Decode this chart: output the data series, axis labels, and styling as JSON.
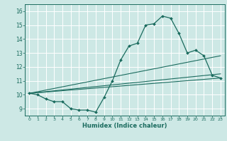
{
  "xlabel": "Humidex (Indice chaleur)",
  "ylabel": "",
  "background_color": "#cde8e5",
  "line_color": "#1a6b5e",
  "grid_color": "#ffffff",
  "xlim": [
    -0.5,
    23.5
  ],
  "ylim": [
    8.5,
    16.5
  ],
  "xticks": [
    0,
    1,
    2,
    3,
    4,
    5,
    6,
    7,
    8,
    9,
    10,
    11,
    12,
    13,
    14,
    15,
    16,
    17,
    18,
    19,
    20,
    21,
    22,
    23
  ],
  "yticks": [
    9,
    10,
    11,
    12,
    13,
    14,
    15,
    16
  ],
  "curve1_x": [
    0,
    1,
    2,
    3,
    4,
    5,
    6,
    7,
    8,
    9,
    10,
    11,
    12,
    13,
    14,
    15,
    16,
    17,
    18,
    19,
    20,
    21,
    22,
    23
  ],
  "curve1_y": [
    10.1,
    10.0,
    9.7,
    9.5,
    9.5,
    9.0,
    8.9,
    8.9,
    8.75,
    9.8,
    11.0,
    12.5,
    13.5,
    13.7,
    15.0,
    15.1,
    15.65,
    15.5,
    14.4,
    13.0,
    13.2,
    12.8,
    11.4,
    11.2
  ],
  "curve2_x": [
    0,
    23
  ],
  "curve2_y": [
    10.1,
    11.2
  ],
  "curve3_x": [
    0,
    23
  ],
  "curve3_y": [
    10.1,
    12.8
  ],
  "curve4_x": [
    0,
    23
  ],
  "curve4_y": [
    10.1,
    11.5
  ]
}
